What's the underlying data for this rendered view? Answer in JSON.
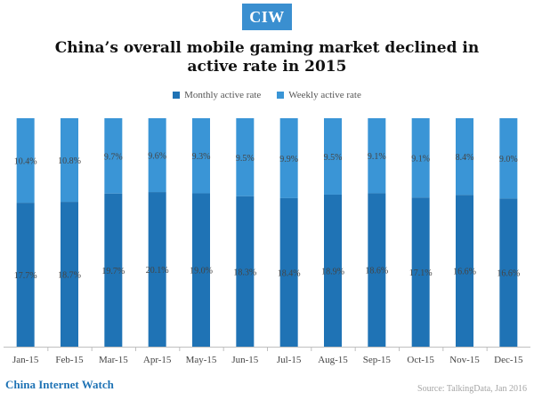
{
  "logo": {
    "text": "CIW"
  },
  "colors": {
    "monthly": "#1f73b5",
    "weekly": "#3a95d6",
    "brand": "#1f73b5",
    "logo_bg": "#3a8fd0"
  },
  "chart_data": {
    "type": "bar",
    "stacked": true,
    "title_line1": "China’s overall mobile gaming market declined in",
    "title_line2": "active rate in 2015",
    "categories": [
      "Jan-15",
      "Feb-15",
      "Mar-15",
      "Apr-15",
      "May-15",
      "Jun-15",
      "Jul-15",
      "Aug-15",
      "Sep-15",
      "Oct-15",
      "Nov-15",
      "Dec-15"
    ],
    "series": [
      {
        "name": "Monthly active rate",
        "values": [
          17.7,
          18.7,
          19.7,
          20.1,
          19.0,
          18.3,
          18.4,
          18.9,
          18.6,
          17.1,
          16.6,
          16.6
        ],
        "labels": [
          "17.7%",
          "18.7%",
          "19.7%",
          "20.1%",
          "19.0%",
          "18.3%",
          "18.4%",
          "18.9%",
          "18.6%",
          "17.1%",
          "16.6%",
          "16.6%"
        ]
      },
      {
        "name": "Weekly active rate",
        "values": [
          10.4,
          10.8,
          9.7,
          9.6,
          9.3,
          9.5,
          9.9,
          9.5,
          9.1,
          9.1,
          8.4,
          9.0
        ],
        "labels": [
          "10.4%",
          "10.8%",
          "9.7%",
          "9.6%",
          "9.3%",
          "9.5%",
          "9.9%",
          "9.5%",
          "9.1%",
          "9.1%",
          "8.4%",
          "9.0%"
        ]
      }
    ],
    "legend": "top-center",
    "normalized_to_100": true
  },
  "footer": {
    "brand": "China Internet Watch",
    "source": "Source: TalkingData, Jan 2016"
  }
}
